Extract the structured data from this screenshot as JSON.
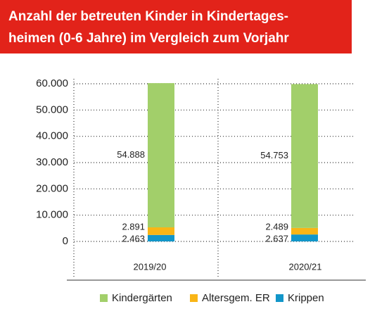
{
  "chart_data": {
    "type": "stacked-bar",
    "title": [
      "Anzahl der betreuten Kinder in Kindertages-",
      "heimen (0-6 Jahre)  im Vergleich zum Vorjahr"
    ],
    "categories": [
      "2019/20",
      "2020/21"
    ],
    "series": [
      {
        "name": "Krippen",
        "color": "#1296c9",
        "values": [
          2463,
          2637
        ],
        "value_labels": [
          "2.463",
          "2.637"
        ]
      },
      {
        "name": "Altersgem. ER",
        "color": "#f9b516",
        "values": [
          2891,
          2489
        ],
        "value_labels": [
          "2.891",
          "2.489"
        ]
      },
      {
        "name": "Kindergärten",
        "color": "#a2cf6a",
        "values": [
          54888,
          54753
        ],
        "value_labels": [
          "54.888",
          "54.753"
        ]
      }
    ],
    "ylim": [
      0,
      60000
    ],
    "yticks": [
      0,
      {
        "value": 10000,
        "label": "10.000"
      },
      {
        "value": 20000,
        "label": "20.000"
      },
      {
        "value": 30000,
        "label": "30.000"
      },
      {
        "value": 40000,
        "label": "40.000"
      },
      {
        "value": 50000,
        "label": "50.000"
      },
      {
        "value": 60000,
        "label": "60.000"
      }
    ],
    "grid": true,
    "legend": "bottom"
  }
}
